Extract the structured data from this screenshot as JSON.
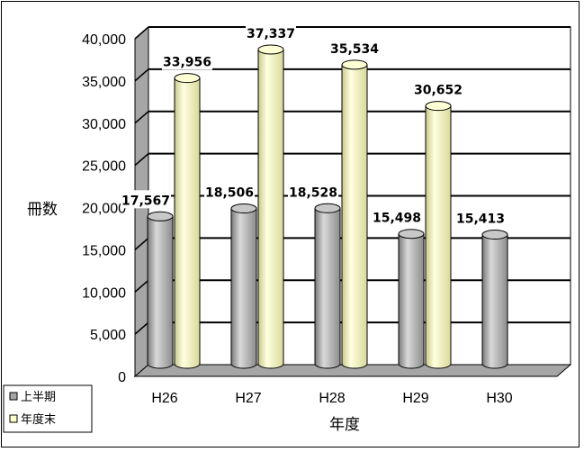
{
  "chart_data": {
    "type": "bar",
    "categories": [
      "H26",
      "H27",
      "H28",
      "H29",
      "H30"
    ],
    "series": [
      {
        "name": "上半期",
        "values": [
          17567,
          18506,
          18528,
          15498,
          15413
        ],
        "labels": [
          "17,567",
          "18,506",
          "18,528",
          "15,498",
          "15,413"
        ],
        "color": "#a6a6a6"
      },
      {
        "name": "年度末",
        "values": [
          33956,
          37337,
          35534,
          30652,
          null
        ],
        "labels": [
          "33,956",
          "37,337",
          "35,534",
          "30,652",
          ""
        ],
        "color": "#ffffcc"
      }
    ],
    "xlabel": "年度",
    "ylabel": "冊数",
    "ylim": [
      0,
      40000
    ],
    "yticks": [
      0,
      5000,
      10000,
      15000,
      20000,
      25000,
      30000,
      35000,
      40000
    ],
    "ytick_labels": [
      "0",
      "5,000",
      "10,000",
      "15,000",
      "20,000",
      "25,000",
      "30,000",
      "35,000",
      "40,000"
    ],
    "grid": true,
    "legend": "bottom-left",
    "style": "3d-cylinder"
  }
}
